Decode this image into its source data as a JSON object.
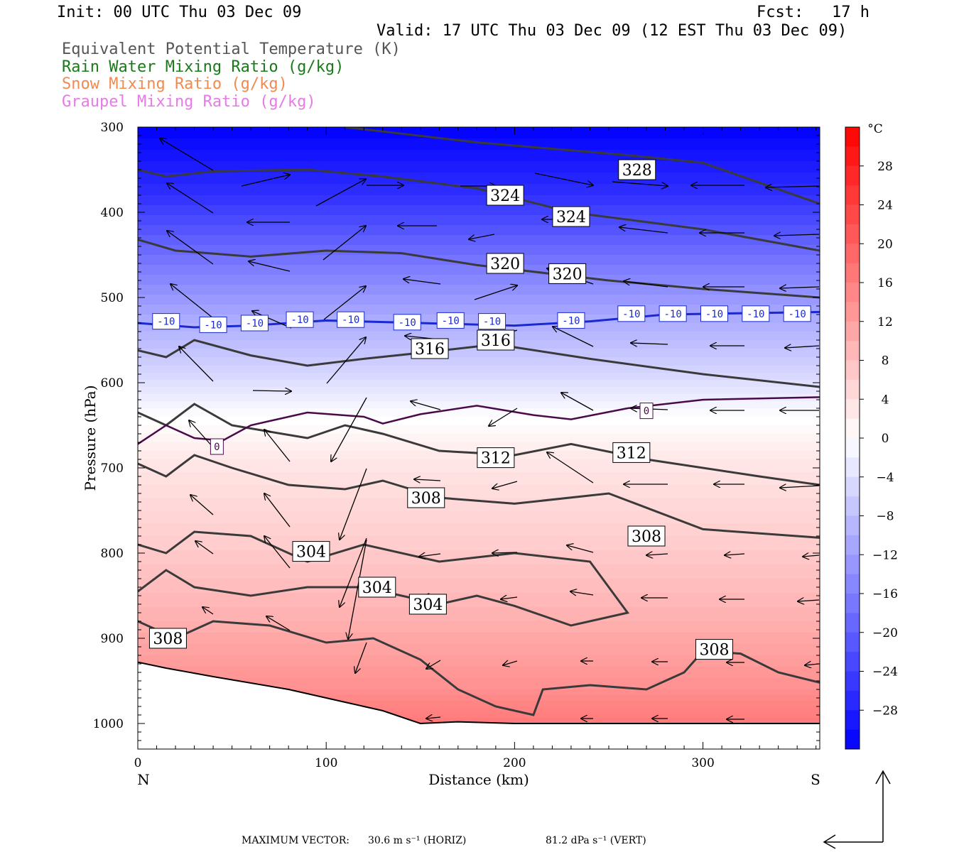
{
  "header": {
    "init": "Init: 00 UTC Thu 03 Dec 09",
    "fcst": "Fcst:   17 h",
    "valid": "Valid: 17 UTC Thu 03 Dec 09 (12 EST Thu 03 Dec 09)",
    "fields": [
      {
        "label": "Equivalent Potential Temperature (K)",
        "color": "#555555"
      },
      {
        "label": "Rain Water Mixing Ratio (g/kg)",
        "color": "#1a7a1a"
      },
      {
        "label": "Snow Mixing Ratio (g/kg)",
        "color": "#f08a50"
      },
      {
        "label": "Graupel Mixing Ratio (g/kg)",
        "color": "#e87ae8"
      }
    ]
  },
  "footer": {
    "max_vector_label": "MAXIMUM VECTOR:",
    "horiz": "30.6 m s⁻¹ (HORIZ)",
    "vert": "81.2 dPa s⁻¹ (VERT)"
  },
  "chart_data": {
    "type": "cross-section",
    "xlabel": "Distance (km)",
    "ylabel": "Pressure (hPa)",
    "xlim": [
      0,
      362
    ],
    "ylim": [
      1030,
      300
    ],
    "x_ticks": [
      0,
      100,
      200,
      300
    ],
    "y_ticks": [
      300,
      400,
      500,
      600,
      700,
      800,
      900,
      1000
    ],
    "x_end_labels": {
      "left": "N",
      "right": "S"
    },
    "colorbar": {
      "unit": "°C",
      "ticks": [
        28,
        24,
        20,
        16,
        12,
        8,
        4,
        0,
        -4,
        -8,
        -12,
        -16,
        -20,
        -24,
        -28
      ],
      "min": -32,
      "max": 32
    },
    "temperature_shading": [
      {
        "p": 300,
        "t": -32
      },
      {
        "p": 380,
        "t": -26
      },
      {
        "p": 450,
        "t": -18
      },
      {
        "p": 520,
        "t": -11
      },
      {
        "p": 580,
        "t": -6
      },
      {
        "p": 630,
        "t": -1
      },
      {
        "p": 690,
        "t": 3
      },
      {
        "p": 780,
        "t": 6
      },
      {
        "p": 880,
        "t": 10
      },
      {
        "p": 960,
        "t": 14
      },
      {
        "p": 1000,
        "t": 17
      }
    ],
    "theta_e_contours": [
      {
        "label": "328",
        "points": [
          [
            110,
            300
          ],
          [
            180,
            318
          ],
          [
            260,
            333
          ],
          [
            300,
            342
          ],
          [
            362,
            390
          ]
        ],
        "labels_at": [
          [
            265,
            350
          ]
        ]
      },
      {
        "label": "324",
        "points": [
          [
            0,
            350
          ],
          [
            15,
            358
          ],
          [
            40,
            352
          ],
          [
            90,
            350
          ],
          [
            130,
            358
          ],
          [
            180,
            372
          ],
          [
            230,
            400
          ],
          [
            300,
            420
          ],
          [
            362,
            445
          ]
        ],
        "labels_at": [
          [
            195,
            380
          ],
          [
            230,
            405
          ]
        ]
      },
      {
        "label": "320",
        "points": [
          [
            0,
            432
          ],
          [
            20,
            445
          ],
          [
            60,
            452
          ],
          [
            100,
            445
          ],
          [
            140,
            448
          ],
          [
            180,
            462
          ],
          [
            250,
            480
          ],
          [
            300,
            490
          ],
          [
            362,
            500
          ]
        ],
        "labels_at": [
          [
            195,
            460
          ],
          [
            228,
            472
          ]
        ]
      },
      {
        "label": "316",
        "points": [
          [
            0,
            562
          ],
          [
            15,
            570
          ],
          [
            30,
            550
          ],
          [
            60,
            568
          ],
          [
            90,
            580
          ],
          [
            120,
            572
          ],
          [
            150,
            565
          ],
          [
            190,
            555
          ],
          [
            240,
            572
          ],
          [
            300,
            590
          ],
          [
            362,
            605
          ]
        ],
        "labels_at": [
          [
            155,
            560
          ],
          [
            190,
            550
          ]
        ]
      },
      {
        "label": "312",
        "points": [
          [
            0,
            635
          ],
          [
            15,
            650
          ],
          [
            30,
            625
          ],
          [
            50,
            650
          ],
          [
            90,
            665
          ],
          [
            110,
            650
          ],
          [
            130,
            660
          ],
          [
            160,
            680
          ],
          [
            200,
            685
          ],
          [
            230,
            672
          ],
          [
            270,
            690
          ],
          [
            330,
            710
          ],
          [
            362,
            720
          ]
        ],
        "labels_at": [
          [
            190,
            688
          ],
          [
            262,
            682
          ]
        ]
      },
      {
        "label": "308",
        "points": [
          [
            0,
            695
          ],
          [
            15,
            710
          ],
          [
            30,
            685
          ],
          [
            50,
            700
          ],
          [
            80,
            720
          ],
          [
            110,
            725
          ],
          [
            130,
            715
          ],
          [
            160,
            735
          ],
          [
            200,
            742
          ],
          [
            250,
            730
          ],
          [
            300,
            772
          ],
          [
            362,
            782
          ]
        ],
        "labels_at": [
          [
            153,
            735
          ],
          [
            270,
            780
          ]
        ]
      },
      {
        "label": "304",
        "points": [
          [
            0,
            790
          ],
          [
            15,
            800
          ],
          [
            30,
            775
          ],
          [
            60,
            780
          ],
          [
            90,
            810
          ],
          [
            120,
            790
          ],
          [
            160,
            810
          ],
          [
            200,
            800
          ],
          [
            240,
            810
          ],
          [
            260,
            870
          ],
          [
            230,
            885
          ],
          [
            200,
            862
          ],
          [
            180,
            850
          ],
          [
            160,
            860
          ],
          [
            120,
            840
          ],
          [
            90,
            840
          ],
          [
            60,
            850
          ],
          [
            30,
            840
          ],
          [
            15,
            820
          ],
          [
            0,
            845
          ]
        ],
        "labels_at": [
          [
            92,
            798
          ],
          [
            127,
            840
          ],
          [
            154,
            860
          ]
        ]
      },
      {
        "label": "308",
        "points": [
          [
            0,
            880
          ],
          [
            20,
            900
          ],
          [
            40,
            880
          ],
          [
            70,
            885
          ],
          [
            100,
            905
          ],
          [
            125,
            900
          ],
          [
            150,
            925
          ],
          [
            170,
            960
          ],
          [
            190,
            980
          ],
          [
            210,
            990
          ],
          [
            215,
            960
          ],
          [
            240,
            955
          ],
          [
            270,
            960
          ],
          [
            290,
            940
          ],
          [
            300,
            915
          ],
          [
            320,
            918
          ],
          [
            340,
            940
          ],
          [
            362,
            952
          ]
        ],
        "labels_at": [
          [
            16,
            900
          ],
          [
            306,
            913
          ]
        ]
      }
    ],
    "isotherm_minus10": {
      "label": "-10",
      "points": [
        [
          0,
          530
        ],
        [
          30,
          535
        ],
        [
          60,
          533
        ],
        [
          100,
          527
        ],
        [
          150,
          530
        ],
        [
          200,
          533
        ],
        [
          240,
          528
        ],
        [
          280,
          520
        ],
        [
          362,
          517
        ]
      ],
      "labels_at": [
        [
          15,
          528
        ],
        [
          40,
          532
        ],
        [
          62,
          530
        ],
        [
          86,
          526
        ],
        [
          113,
          526
        ],
        [
          143,
          529
        ],
        [
          166,
          527
        ],
        [
          188,
          528
        ],
        [
          230,
          527
        ],
        [
          262,
          519
        ],
        [
          284,
          519
        ],
        [
          306,
          519
        ],
        [
          328,
          519
        ],
        [
          350,
          519
        ]
      ]
    },
    "isotherm_0": {
      "label": "0",
      "points": [
        [
          0,
          672
        ],
        [
          15,
          650
        ],
        [
          30,
          665
        ],
        [
          45,
          668
        ],
        [
          60,
          650
        ],
        [
          90,
          635
        ],
        [
          120,
          640
        ],
        [
          130,
          648
        ],
        [
          150,
          637
        ],
        [
          180,
          627
        ],
        [
          210,
          638
        ],
        [
          230,
          643
        ],
        [
          260,
          630
        ],
        [
          300,
          620
        ],
        [
          362,
          617
        ]
      ],
      "labels_at": [
        [
          42,
          675
        ],
        [
          270,
          633
        ]
      ]
    },
    "ground_surface": [
      [
        0,
        928
      ],
      [
        15,
        935
      ],
      [
        40,
        945
      ],
      [
        80,
        960
      ],
      [
        110,
        975
      ],
      [
        130,
        985
      ],
      [
        150,
        1000
      ],
      [
        170,
        998
      ],
      [
        200,
        1000
      ],
      [
        250,
        1000
      ],
      [
        300,
        1000
      ],
      [
        362,
        1000
      ]
    ]
  }
}
